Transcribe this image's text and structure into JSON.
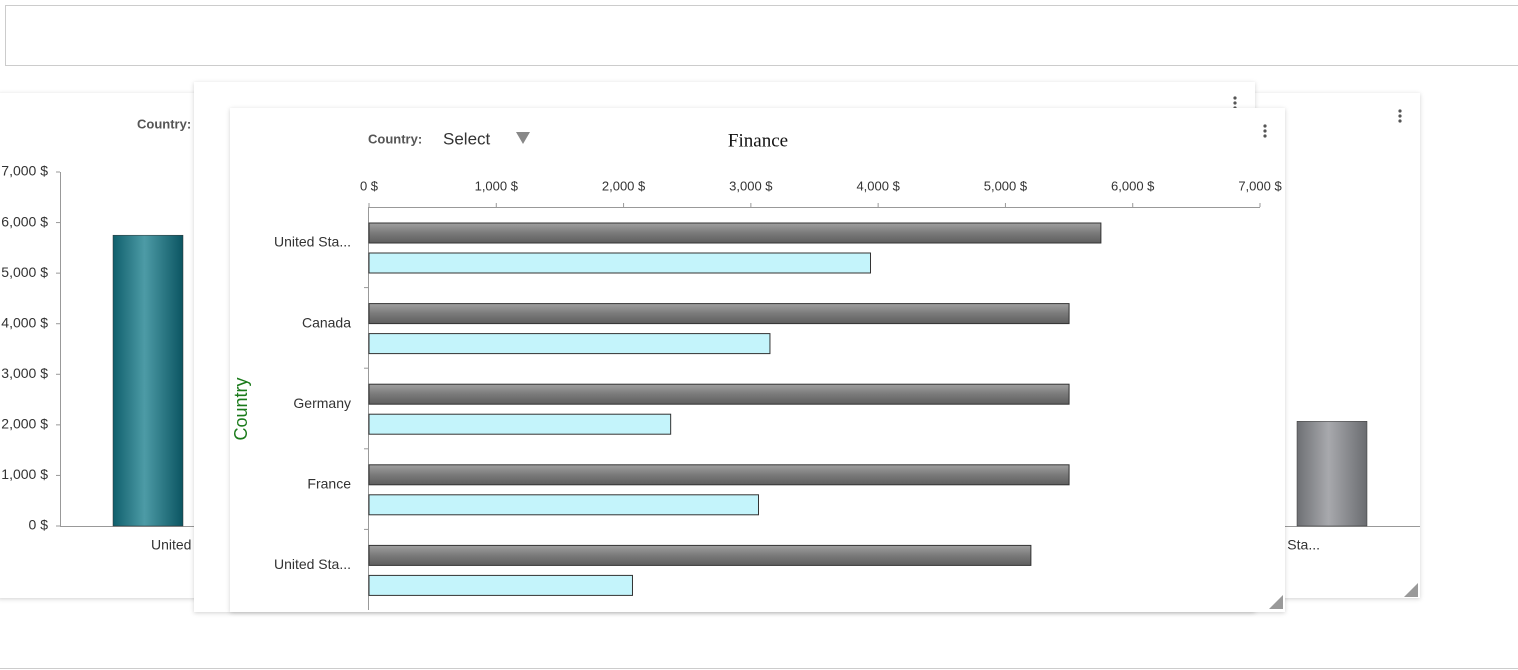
{
  "chart_data": [
    {
      "type": "bar",
      "orientation": "horizontal",
      "title": "Finance",
      "filter_label": "Country:",
      "filter_value": "Select",
      "y_label": "Country",
      "categories": [
        "United Sta...",
        "Canada",
        "Germany",
        "France",
        "United Sta..."
      ],
      "series": [
        {
          "color": "#7a7a7a",
          "values": [
            5750,
            5500,
            5500,
            5500,
            5200
          ]
        },
        {
          "color": "#c4f4fb",
          "values": [
            3940,
            3150,
            2370,
            3060,
            2070
          ]
        }
      ],
      "xlim": [
        0,
        7000
      ],
      "xticks": [
        {
          "value": 0,
          "label": "0 $"
        },
        {
          "value": 1000,
          "label": "1,000 $"
        },
        {
          "value": 2000,
          "label": "2,000 $"
        },
        {
          "value": 3000,
          "label": "3,000 $"
        },
        {
          "value": 4000,
          "label": "4,000 $"
        },
        {
          "value": 5000,
          "label": "5,000 $"
        },
        {
          "value": 6000,
          "label": "6,000 $"
        },
        {
          "value": 7000,
          "label": "7,000 $"
        }
      ]
    },
    {
      "type": "bar",
      "filter_label": "Country:",
      "categories": [
        "United Sta...",
        "United Sta..."
      ],
      "values": [
        5750,
        2070
      ],
      "colors": [
        "#2b7f8c",
        "#8e9094"
      ],
      "ylim": [
        0,
        7000
      ],
      "yticks": [
        {
          "value": 0,
          "label": "0 $"
        },
        {
          "value": 1000,
          "label": "1,000 $"
        },
        {
          "value": 2000,
          "label": "2,000 $"
        },
        {
          "value": 3000,
          "label": "3,000 $"
        },
        {
          "value": 4000,
          "label": "4,000 $"
        },
        {
          "value": 5000,
          "label": "5,000 $"
        },
        {
          "value": 6000,
          "label": "6,000 $"
        },
        {
          "value": 7000,
          "label": "7,000 $"
        }
      ]
    }
  ]
}
